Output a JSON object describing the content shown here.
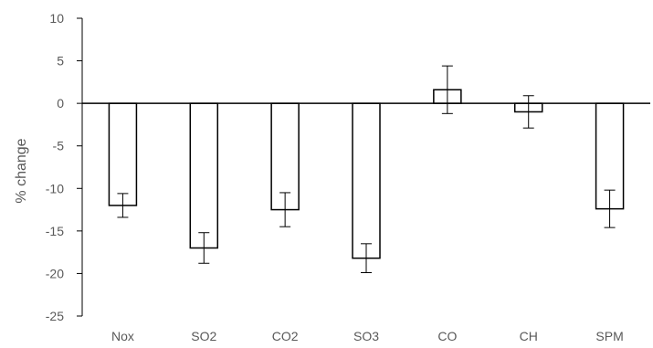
{
  "chart_data": {
    "type": "bar",
    "title": "",
    "xlabel": "",
    "ylabel": "% change",
    "ylim": [
      -25,
      10
    ],
    "ytick_step": 5,
    "ytick_labels": [
      "10",
      "5",
      "0",
      "-5",
      "-10",
      "-15",
      "-20",
      "-25"
    ],
    "categories": [
      "Nox",
      "SO2",
      "CO2",
      "SO3",
      "CO",
      "CH",
      "SPM"
    ],
    "values": [
      -12.0,
      -17.0,
      -12.5,
      -18.2,
      1.6,
      -1.0,
      -12.4
    ],
    "error": [
      1.4,
      1.8,
      2.0,
      1.7,
      2.8,
      1.9,
      2.2
    ],
    "grid": false,
    "legend": "none",
    "bar_fill": "#ffffff",
    "bar_stroke": "#000000"
  }
}
